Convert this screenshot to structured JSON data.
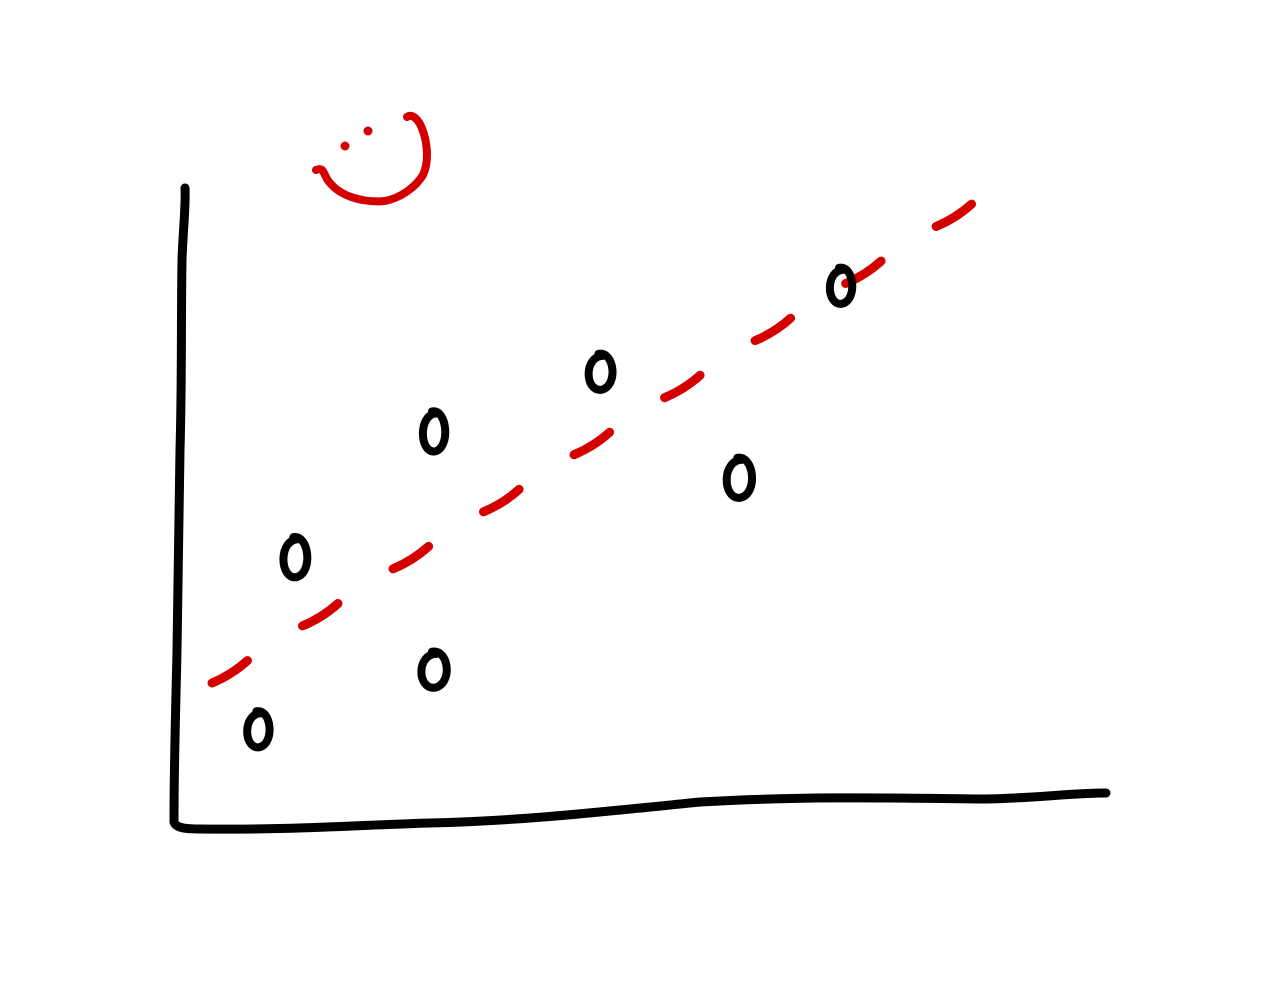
{
  "chart_data": {
    "type": "scatter",
    "style": "hand-drawn sketch",
    "title": "",
    "xlabel": "",
    "ylabel": "",
    "xlim": [
      0,
      10
    ],
    "ylim": [
      0,
      10
    ],
    "grid": false,
    "legend": "none",
    "series": [
      {
        "kind": "points",
        "color": "#000000",
        "points": [
          {
            "x": 0.9,
            "y": 1.4
          },
          {
            "x": 1.3,
            "y": 4.0
          },
          {
            "x": 2.8,
            "y": 2.3
          },
          {
            "x": 2.8,
            "y": 5.9
          },
          {
            "x": 4.6,
            "y": 6.8
          },
          {
            "x": 6.1,
            "y": 5.2
          },
          {
            "x": 7.2,
            "y": 8.1
          }
        ]
      },
      {
        "kind": "trend-line",
        "color": "#d40000",
        "dashed": true,
        "start": {
          "x": 0.4,
          "y": 2.1
        },
        "end": {
          "x": 8.8,
          "y": 9.5
        }
      }
    ],
    "annotations": [
      {
        "kind": "smiley-face-doodle",
        "color": "#d40000",
        "location": "top-left"
      }
    ]
  }
}
